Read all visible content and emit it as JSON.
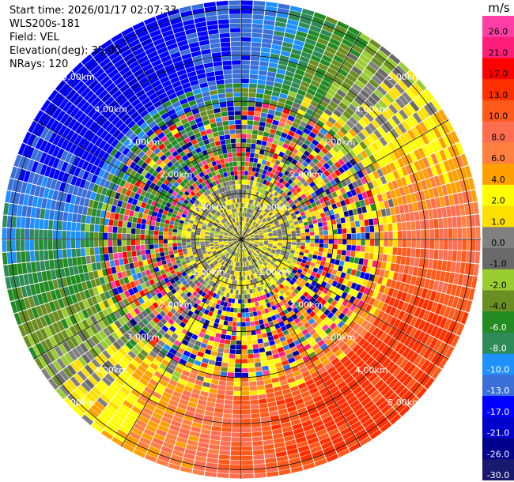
{
  "header": {
    "start_time": "Start time: 2026/01/17 02:07:33",
    "instrument": "WLS200s-181",
    "field": "Field: VEL",
    "elevation": "Elevation(deg): 35.00",
    "nrays": "NRays: 120"
  },
  "chart_data": {
    "type": "heatmap",
    "projection": "polar-ppi",
    "field": "VEL",
    "units": "m/s",
    "n_rays": 120,
    "elevation_deg": 35.0,
    "range_rings_km": [
      1,
      2,
      3,
      4,
      5
    ],
    "range_ring_labels": [
      "1.00km",
      "2.00km",
      "3.00km",
      "4.00km",
      "5.00km"
    ],
    "max_range_km": 5.2,
    "spokes_deg": [
      0,
      30,
      60,
      90,
      120,
      150,
      180,
      210,
      240,
      270,
      300,
      330
    ],
    "dominant_pattern": {
      "description_note": "approximate radial velocity field per azimuth (deg from north)",
      "azimuth_deg": [
        0,
        30,
        60,
        90,
        120,
        150,
        180,
        210,
        240,
        270,
        300,
        330
      ],
      "outer_velocity": [
        -12,
        -3,
        3,
        9,
        14,
        15,
        10,
        5,
        -2,
        -8,
        -15,
        -16
      ]
    },
    "colorbar": {
      "ticks": [
        "26.0",
        "21.0",
        "17.0",
        "13.0",
        "10.0",
        "8.0",
        "6.0",
        "4.0",
        "2.0",
        "1.0",
        "0.0",
        "-1.0",
        "-2.0",
        "-4.0",
        "-6.0",
        "-8.0",
        "-10.0",
        "-13.0",
        "-17.0",
        "-21.0",
        "-26.0",
        "-30.0"
      ],
      "bins": [
        {
          "lo": 26,
          "hi": 30,
          "color": "#ff3fa6"
        },
        {
          "lo": 21,
          "hi": 26,
          "color": "#ff1f7a"
        },
        {
          "lo": 17,
          "hi": 21,
          "color": "#ff0000"
        },
        {
          "lo": 13,
          "hi": 17,
          "color": "#ff3000"
        },
        {
          "lo": 10,
          "hi": 13,
          "color": "#ff5a1a"
        },
        {
          "lo": 8,
          "hi": 10,
          "color": "#ff6e50"
        },
        {
          "lo": 6,
          "hi": 8,
          "color": "#ff8040"
        },
        {
          "lo": 4,
          "hi": 6,
          "color": "#ffa000"
        },
        {
          "lo": 2,
          "hi": 4,
          "color": "#ffff00"
        },
        {
          "lo": 1,
          "hi": 2,
          "color": "#ffe000"
        },
        {
          "lo": 0,
          "hi": 1,
          "color": "#808080"
        },
        {
          "lo": -1,
          "hi": 0,
          "color": "#696969"
        },
        {
          "lo": -2,
          "hi": -1,
          "color": "#9acd32"
        },
        {
          "lo": -4,
          "hi": -2,
          "color": "#6b8e23"
        },
        {
          "lo": -6,
          "hi": -4,
          "color": "#228b22"
        },
        {
          "lo": -8,
          "hi": -6,
          "color": "#2e8b57"
        },
        {
          "lo": -10,
          "hi": -8,
          "color": "#1e90ff"
        },
        {
          "lo": -13,
          "hi": -10,
          "color": "#3a6fd8"
        },
        {
          "lo": -17,
          "hi": -13,
          "color": "#0000ff"
        },
        {
          "lo": -21,
          "hi": -17,
          "color": "#0000cd"
        },
        {
          "lo": -26,
          "hi": -21,
          "color": "#00008b"
        },
        {
          "lo": -30,
          "hi": -26,
          "color": "#191970"
        }
      ]
    }
  }
}
